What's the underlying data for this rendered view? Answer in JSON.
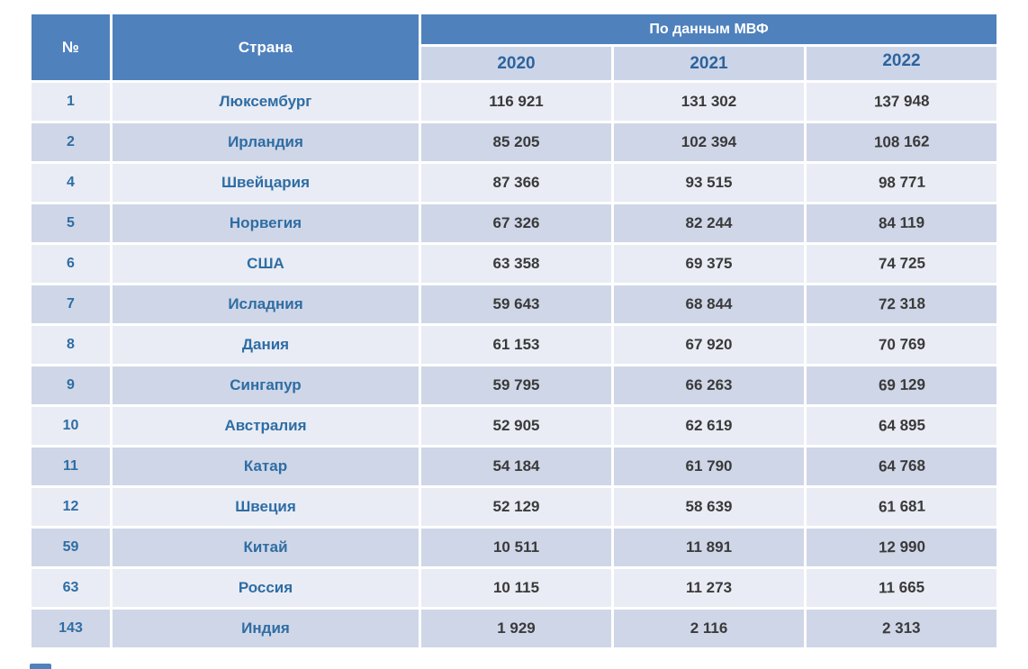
{
  "chart_data": {
    "type": "table",
    "title": "",
    "group_header": "По данным МВФ",
    "columns": [
      "№",
      "Страна",
      "2020",
      "2021",
      "2022"
    ],
    "rows": [
      [
        "1",
        "Люксембург",
        "116 921",
        "131 302",
        "137 948"
      ],
      [
        "2",
        "Ирландия",
        "85 205",
        "102 394",
        "108 162"
      ],
      [
        "4",
        "Швейцария",
        "87 366",
        "93 515",
        "98 771"
      ],
      [
        "5",
        "Норвегия",
        "67 326",
        "82 244",
        "84 119"
      ],
      [
        "6",
        "США",
        "63 358",
        "69 375",
        "74 725"
      ],
      [
        "7",
        "Исладния",
        "59 643",
        "68 844",
        "72 318"
      ],
      [
        "8",
        "Дания",
        "61 153",
        "67 920",
        "70 769"
      ],
      [
        "9",
        "Сингапур",
        "59 795",
        "66 263",
        "69 129"
      ],
      [
        "10",
        "Австралия",
        "52 905",
        "62 619",
        "64 895"
      ],
      [
        "11",
        "Катар",
        "54 184",
        "61 790",
        "64 768"
      ],
      [
        "12",
        "Швеция",
        "52 129",
        "58 639",
        "61 681"
      ],
      [
        "59",
        "Китай",
        "10 511",
        "11 891",
        "12 990"
      ],
      [
        "63",
        "Россия",
        "10 115",
        "11 273",
        "11 665"
      ],
      [
        "143",
        "Индия",
        "1 929",
        "2 116",
        "2 313"
      ]
    ],
    "layout": {
      "banded_rows": true,
      "grid": "white 3px gaps between cells"
    }
  },
  "colors": {
    "header_blue": "#4f81bd",
    "year_row_bg": "#ccd5e8",
    "band_light": "#e9ecf5",
    "band_dark": "#cfd6e7",
    "accent_text_blue": "#2e6da4",
    "year_text_blue": "#2d639e",
    "value_text": "#3a3a3a",
    "page_bg": "#ffffff"
  }
}
